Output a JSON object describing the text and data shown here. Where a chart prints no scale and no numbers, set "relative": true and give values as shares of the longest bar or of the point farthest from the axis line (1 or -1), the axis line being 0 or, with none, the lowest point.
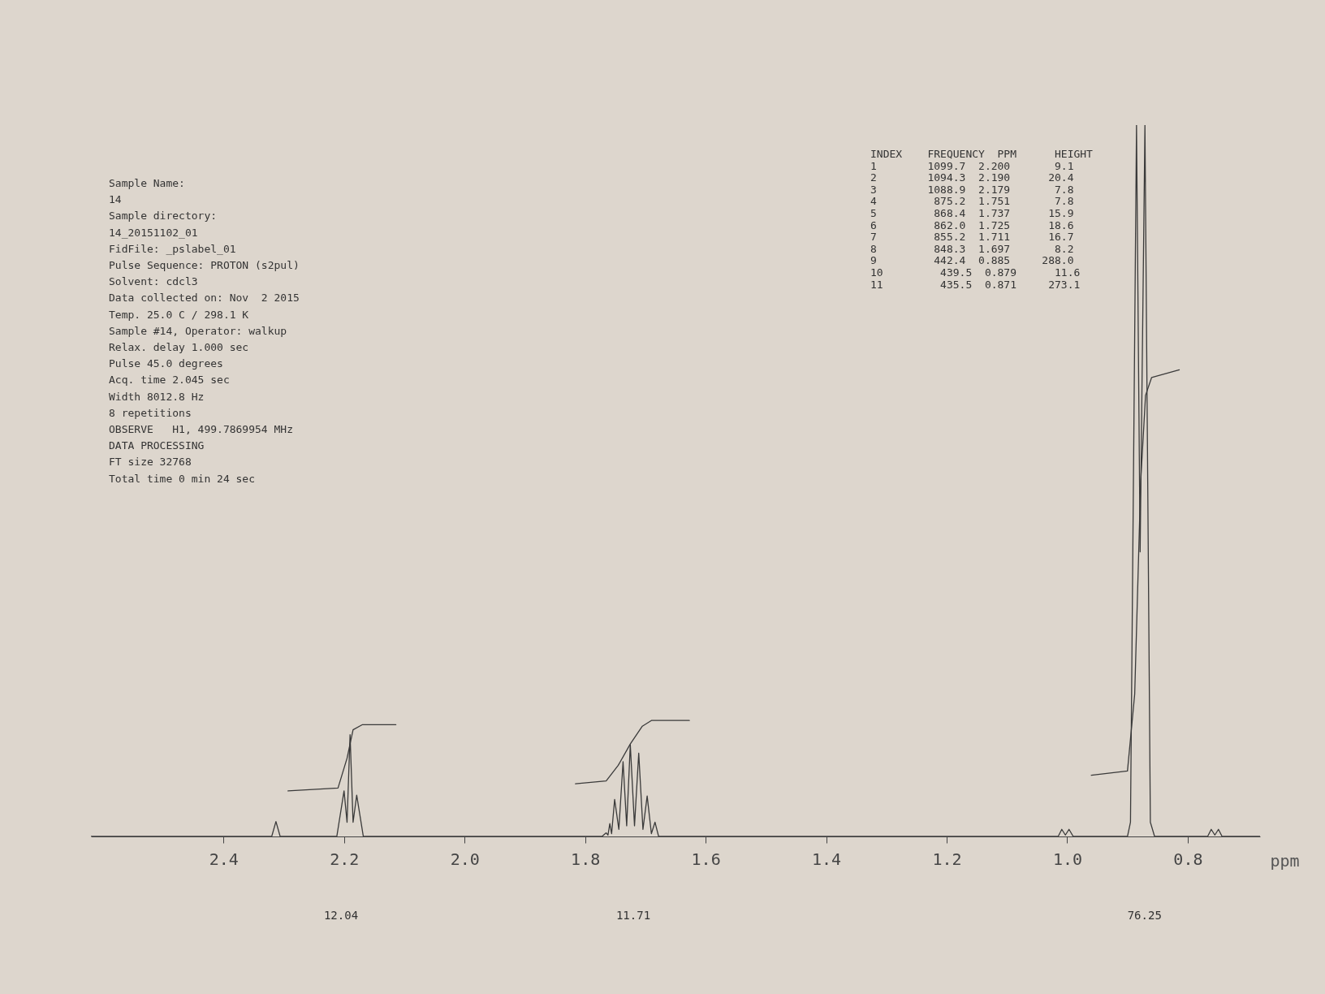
{
  "chart_data": {
    "type": "line",
    "relative": true,
    "xlabel": "ppm",
    "xlim": [
      2.62,
      0.68
    ],
    "xticks": [
      2.4,
      2.2,
      {
        "value": 2,
        "label": "2.0"
      },
      1.8,
      1.6,
      1.4,
      1.2,
      {
        "value": 1,
        "label": "1.0"
      },
      0.8
    ],
    "grid": false,
    "marker": "none",
    "line_style": "solid",
    "series": [
      {
        "color": "#3a3a3a",
        "x": [
          2.62,
          2.32,
          2.313,
          2.306,
          2.212,
          2.2,
          2.195,
          2.19,
          2.185,
          2.179,
          2.168,
          1.772,
          1.765,
          1.762,
          1.759,
          1.756,
          1.751,
          1.744,
          1.737,
          1.731,
          1.725,
          1.718,
          1.711,
          1.704,
          1.697,
          1.69,
          1.684,
          1.678,
          1.015,
          1.009,
          1.003,
          0.997,
          0.99,
          0.9,
          0.895,
          0.885,
          0.879,
          0.871,
          0.862,
          0.855,
          0.767,
          0.761,
          0.755,
          0.749,
          0.743,
          0.68
        ],
        "values": [
          0,
          0,
          0.021,
          0,
          0,
          0.064,
          0.02,
          0.143,
          0.02,
          0.058,
          0,
          0,
          0.005,
          0.002,
          0.018,
          0.004,
          0.052,
          0.01,
          0.105,
          0.015,
          0.129,
          0.015,
          0.117,
          0.01,
          0.057,
          0.004,
          0.02,
          0,
          0,
          0.01,
          0.002,
          0.01,
          0,
          0,
          0.02,
          1,
          0.4,
          1,
          0.02,
          0,
          0,
          0.01,
          0.002,
          0.01,
          0,
          0
        ]
      },
      {
        "color": "#3a3a3a",
        "x": [
          2.293,
          2.21,
          2.195,
          2.185,
          2.17,
          2.114
        ],
        "values": [
          0.064,
          0.068,
          0.11,
          0.15,
          0.157,
          0.157
        ]
      },
      {
        "color": "#3a3a3a",
        "x": [
          1.816,
          1.765,
          1.745,
          1.725,
          1.705,
          1.69,
          1.627
        ],
        "values": [
          0.074,
          0.078,
          0.1,
          0.13,
          0.155,
          0.163,
          0.163
        ]
      },
      {
        "color": "#3a3a3a",
        "x": [
          0.96,
          0.9,
          0.888,
          0.878,
          0.87,
          0.86,
          0.814
        ],
        "values": [
          0.086,
          0.092,
          0.2,
          0.5,
          0.62,
          0.645,
          0.656
        ]
      }
    ],
    "annotations": [
      "Sample Name:",
      "   14",
      "Sample directory:",
      "   14_20151102_01",
      "FidFile: _pslabel_01",
      "Pulse Sequence: PROTON (s2pul)",
      "Solvent: cdcl3",
      "Data collected on: Nov  2 2015",
      "Temp. 25.0 C / 298.1 K",
      "Sample #14, Operator: walkup",
      "Relax. delay 1.000 sec",
      "Pulse 45.0 degrees",
      "Acq. time 2.045 sec",
      "Width 8012.8 Hz",
      "8 repetitions",
      "OBSERVE   H1, 499.7869954 MHz",
      "DATA PROCESSING",
      "FT size 32768",
      "Total time 0 min 24 sec",
      "INDEX    FREQUENCY  PPM      HEIGHT",
      "  1        1099.7  2.200       9.1",
      "  2        1094.3  2.190      20.4",
      "  3        1088.9  2.179       7.8",
      "  4         875.2  1.751       7.8",
      "  5         868.4  1.737      15.9",
      "  6         862.0  1.725      18.6",
      "  7         855.2  1.711      16.7",
      "  8         848.3  1.697       8.2",
      "  9         442.4  0.885     288.0",
      " 10         439.5  0.879      11.6",
      " 11         435.5  0.871     273.1",
      "12.04",
      "11.71",
      "76.25"
    ]
  }
}
